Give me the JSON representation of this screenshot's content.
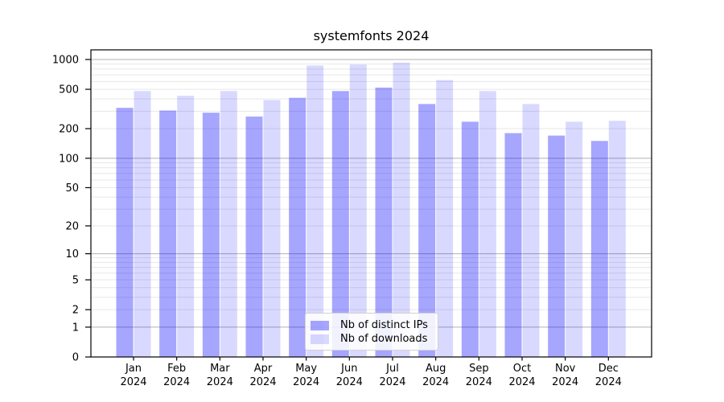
{
  "chart_data": {
    "type": "bar",
    "title": "systemfonts 2024",
    "categories": [
      "Jan",
      "Feb",
      "Mar",
      "Apr",
      "May",
      "Jun",
      "Jul",
      "Aug",
      "Sep",
      "Oct",
      "Nov",
      "Dec"
    ],
    "x_year_label": "2024",
    "series": [
      {
        "name": "Nb of distinct IPs",
        "color": "rgba(0,0,255,0.35)",
        "values": [
          325,
          305,
          290,
          265,
          410,
          480,
          520,
          355,
          235,
          180,
          170,
          150
        ]
      },
      {
        "name": "Nb of downloads",
        "color": "rgba(0,0,255,0.15)",
        "values": [
          480,
          430,
          480,
          390,
          870,
          890,
          930,
          620,
          480,
          355,
          235,
          240
        ]
      }
    ],
    "yscale": "log1p",
    "yticks": [
      1000,
      500,
      200,
      100,
      50,
      20,
      10,
      5,
      2,
      1,
      0
    ],
    "ylim": [
      0,
      1250
    ],
    "grid": {
      "major_ticks": [
        1,
        10,
        100,
        1000
      ],
      "major_color": "#b2b2b2",
      "minor_color": "#e7e7e7"
    },
    "legend": {
      "position": "lower center",
      "entries": [
        "Nb of distinct IPs",
        "Nb of downloads"
      ]
    },
    "frame_color": "#000000",
    "background": "#ffffff",
    "text_color": "#000000"
  }
}
